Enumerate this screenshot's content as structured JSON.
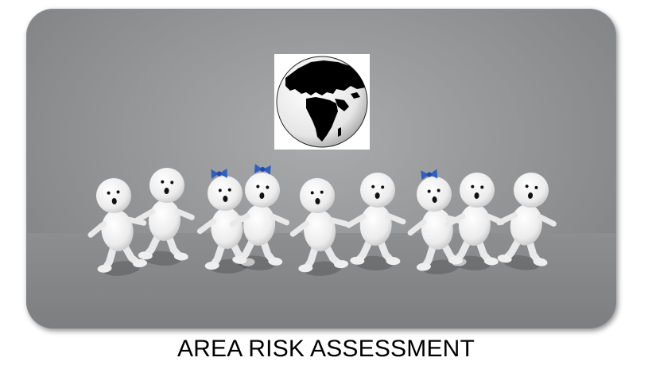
{
  "caption": "AREA RISK ASSESSMENT",
  "colors": {
    "card_background": "#909294",
    "figure_body": "#f2f2f2",
    "bow": "#2f5fc4",
    "globe_land": "#000000",
    "caption_text": "#000000"
  },
  "illustration": {
    "globe_icon": "globe-icon",
    "figure_count": 9,
    "bowed_figure_count": 3
  }
}
